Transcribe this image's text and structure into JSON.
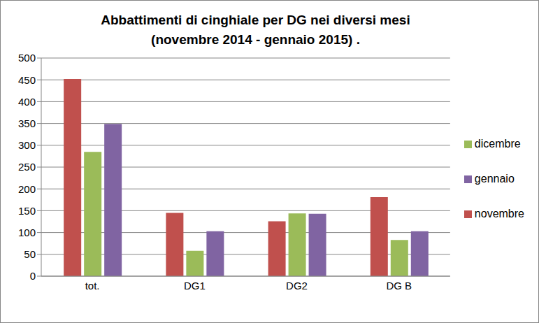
{
  "chart_data": {
    "type": "bar",
    "title": "Abbattimenti di cinghiale per DG nei diversi mesi",
    "subtitle": "(novembre 2014 - gennaio 2015) .",
    "categories": [
      "tot.",
      "DG1",
      "DG2",
      "DG B"
    ],
    "series": [
      {
        "name": "novembre",
        "color": "#c0504d",
        "values": [
          452,
          145,
          126,
          181
        ]
      },
      {
        "name": "dicembre",
        "color": "#9bbb59",
        "values": [
          285,
          58,
          144,
          83
        ]
      },
      {
        "name": "gennaio",
        "color": "#8064a2",
        "values": [
          349,
          103,
          143,
          103
        ]
      }
    ],
    "ylim": [
      0,
      500
    ],
    "yticks": [
      0,
      50,
      100,
      150,
      200,
      250,
      300,
      350,
      400,
      450,
      500
    ],
    "grid": true,
    "legend": "right"
  }
}
